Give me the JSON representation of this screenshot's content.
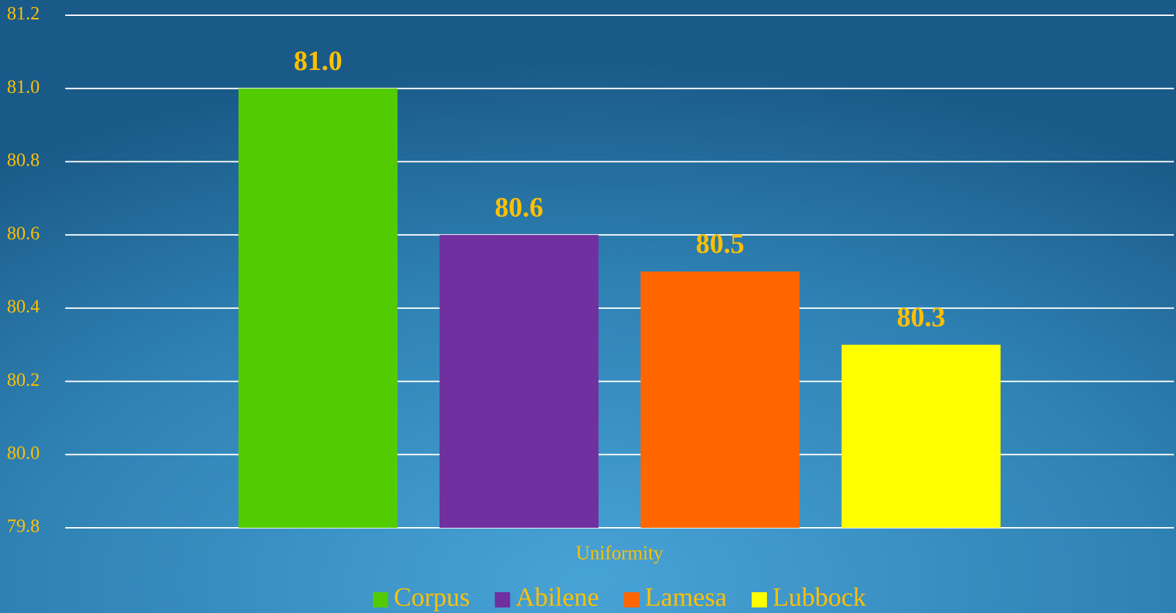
{
  "chart_data": {
    "type": "bar",
    "categories": [
      "Uniformity"
    ],
    "series": [
      {
        "name": "Corpus",
        "color": "#52cc00",
        "values": [
          81
        ],
        "value_labels": [
          "81.0"
        ]
      },
      {
        "name": "Abilene",
        "color": "#7030a0",
        "values": [
          80.6
        ],
        "value_labels": [
          "80.6"
        ]
      },
      {
        "name": "Lamesa",
        "color": "#ff6600",
        "values": [
          80.5
        ],
        "value_labels": [
          "80.5"
        ]
      },
      {
        "name": "Lubbock",
        "color": "#ffff00",
        "values": [
          80.3
        ],
        "value_labels": [
          "80.3"
        ]
      }
    ],
    "ylim": [
      79.8,
      81.2
    ],
    "yticks": [
      79.8,
      {
        "value": 80,
        "label": "80.0"
      },
      80.2,
      80.4,
      80.6,
      80.8,
      {
        "value": 81,
        "label": "81.0"
      },
      81.2
    ],
    "grid": true,
    "legend": "bottom"
  }
}
